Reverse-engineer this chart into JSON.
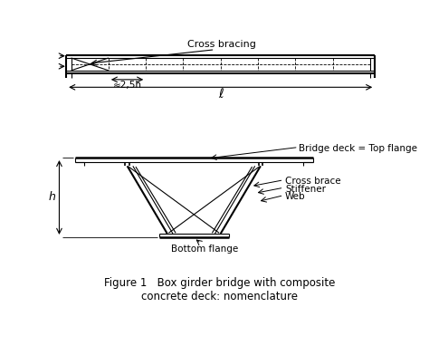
{
  "bg_color": "#ffffff",
  "line_color": "#000000",
  "title": "Figure 1   Box girder bridge with composite\nconcrete deck: nomenclature",
  "title_fontsize": 8.5,
  "labels": {
    "cross_bracing": "Cross bracing",
    "approx_spacing": "≈2,5h",
    "length": "ℓ",
    "bridge_deck": "Bridge deck = Top flange",
    "cross_brace": "Cross brace",
    "stiffener": "Stiffener",
    "web": "Web",
    "bottom_flange": "Bottom flange",
    "h_label": "h"
  }
}
